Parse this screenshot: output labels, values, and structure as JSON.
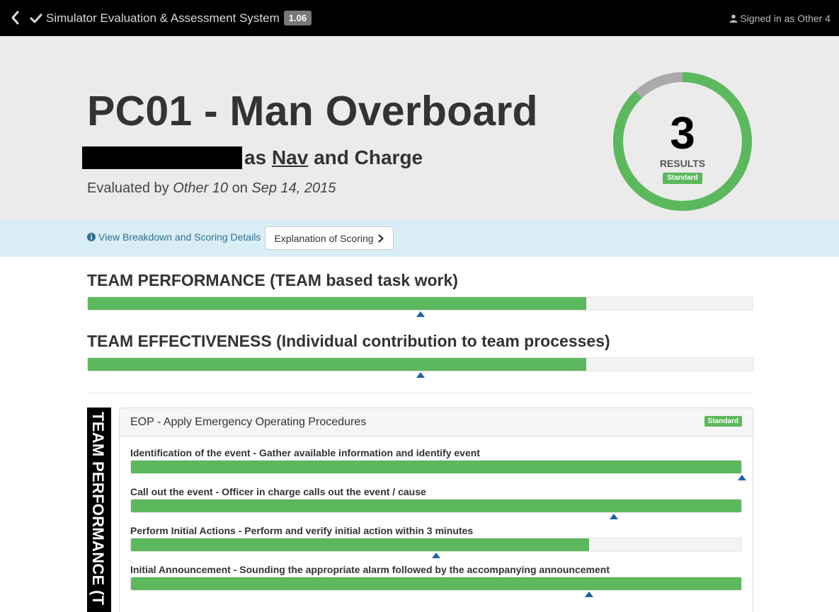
{
  "app": {
    "title": "Simulator Evaluation & Assessment System",
    "version": "1.06",
    "signed_in": "Signed in as Other 4"
  },
  "header": {
    "title": "PC01 - Man Overboard",
    "role_prefix": "as",
    "role": "Nav",
    "role_suffix": "and Charge",
    "evaluated_prefix": "Evaluated by",
    "evaluator": "Other 10",
    "evaluated_on": "on",
    "date": "Sep 14, 2015"
  },
  "result": {
    "score": "3",
    "label": "RESULTS",
    "badge": "Standard",
    "ring_fraction": 0.88
  },
  "info": {
    "breakdown_link": "View Breakdown and Scoring Details",
    "explain_button": "Explanation of Scoring"
  },
  "summary": [
    {
      "title": "TEAM PERFORMANCE (TEAM based task work)",
      "value": 0.75,
      "standard": 0.5
    },
    {
      "title": "TEAM EFFECTIVENESS (Individual contribution to team processes)",
      "value": 0.75,
      "standard": 0.5
    }
  ],
  "section_label": "TEAM PERFORMANCE (T",
  "panel": {
    "title": "EOP - Apply Emergency Operating Procedures",
    "badge": "Standard",
    "criteria": [
      {
        "label": "Identification of the event - Gather available information and identify event",
        "value": 1.0,
        "standard": 1.0
      },
      {
        "label": "Call out the event - Officer in charge calls out the event / cause",
        "value": 1.0,
        "standard": 0.79
      },
      {
        "label": "Perform Initial Actions - Perform and verify initial action within 3 minutes",
        "value": 0.75,
        "standard": 0.5
      },
      {
        "label": "Initial Announcement - Sounding the appropriate alarm followed by the accompanying announcement",
        "value": 1.0,
        "standard": 0.75
      }
    ]
  },
  "colors": {
    "success": "#5cb85c",
    "marker": "#1f62a8",
    "info_bg": "#d9edf7",
    "hero_bg": "#ebebeb"
  }
}
